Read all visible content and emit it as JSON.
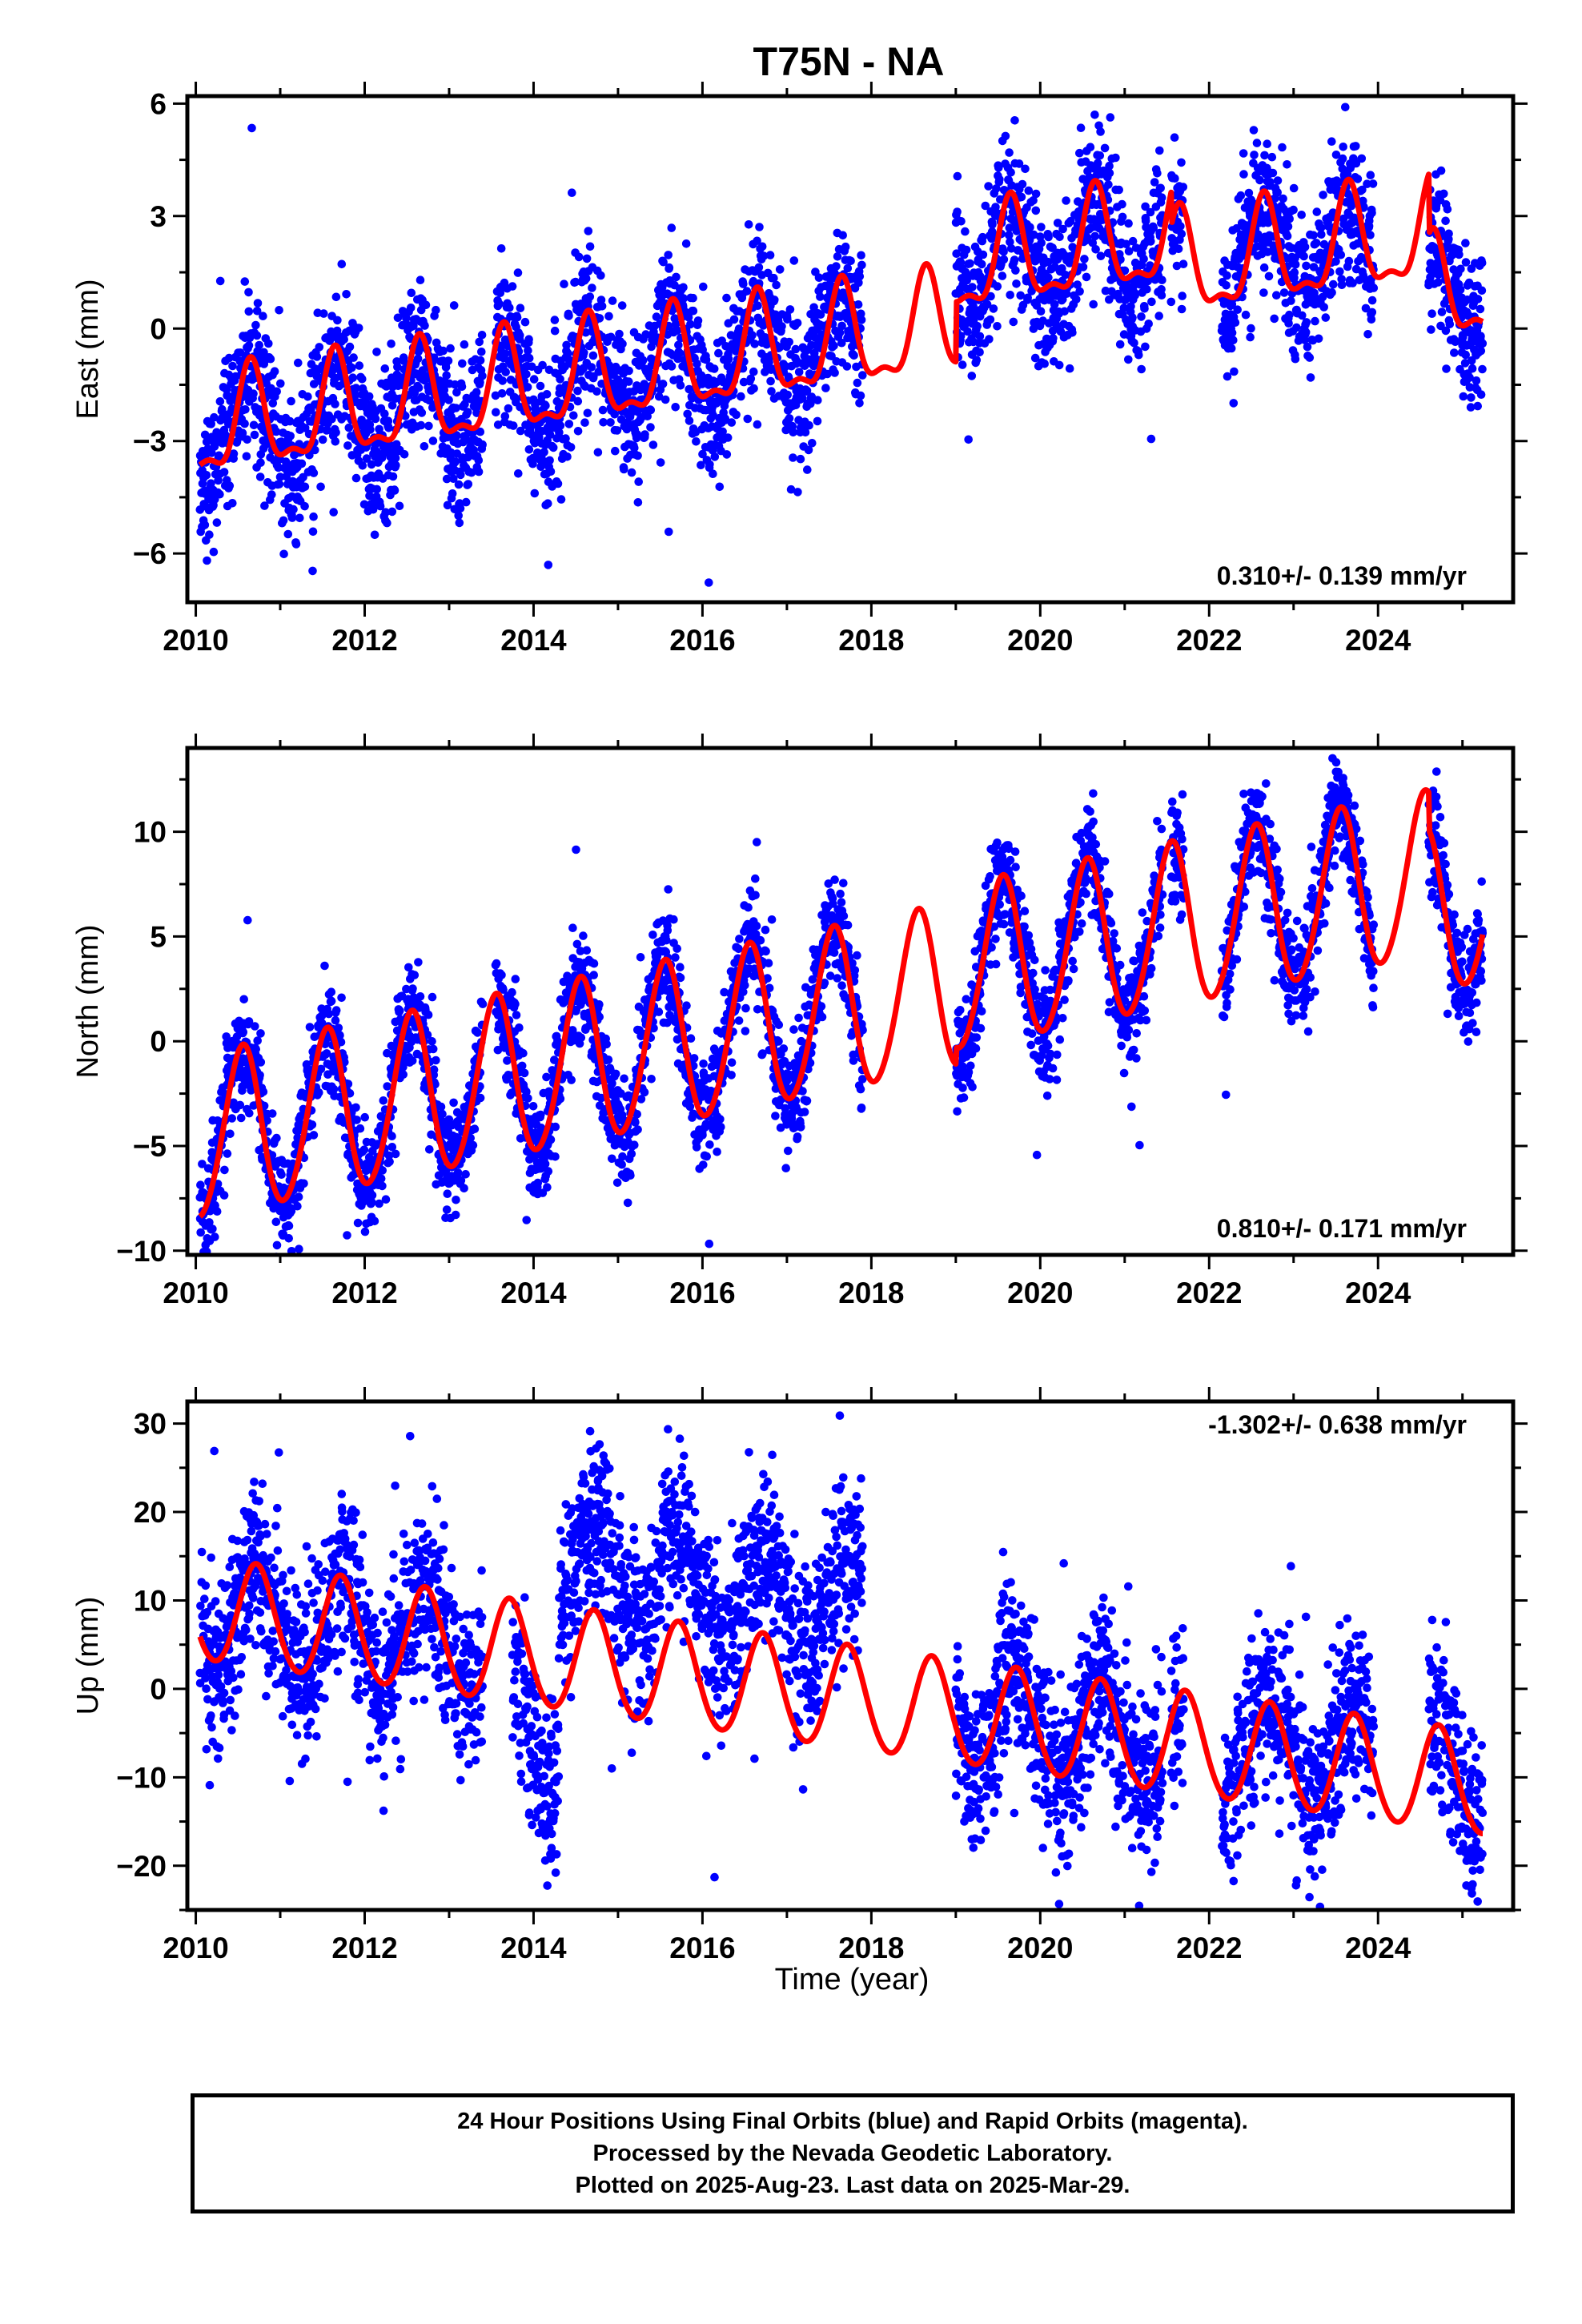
{
  "title": "T75N - NA",
  "xlabel": "Time (year)",
  "colors": {
    "final_orbits": "#0000ff",
    "model_fit": "#ff0000",
    "axes": "#000000"
  },
  "footer": {
    "line1": "24 Hour Positions Using Final Orbits (blue) and Rapid Orbits (magenta).",
    "line2": "Processed by the Nevada Geodetic Laboratory.",
    "line3": "Plotted on 2025-Aug-23. Last data on 2025-Mar-29."
  },
  "chart_data": [
    {
      "type": "scatter",
      "ylabel": "East (mm)",
      "xlim": [
        2009.9,
        2025.6
      ],
      "ylim": [
        -7.3,
        6.2
      ],
      "x_ticks": [
        2010,
        2012,
        2014,
        2016,
        2018,
        2020,
        2022,
        2024
      ],
      "x_tick_labels": [
        "2010",
        "2012",
        "2014",
        "2016",
        "2018",
        "2020",
        "2022",
        "2024"
      ],
      "y_ticks": [
        -6,
        -3,
        0,
        3,
        6
      ],
      "y_tick_labels": [
        "−6",
        "−3",
        "0",
        "3",
        "6"
      ],
      "rate_label": "0.310+/- 0.139 mm/yr",
      "rate_label_position": "bottom-right",
      "grid": false,
      "series": [
        {
          "kind": "points",
          "data_segments": [
            [
              2010.05,
              2013.4
            ],
            [
              2013.55,
              2017.9
            ],
            [
              2019.0,
              2021.45
            ],
            [
              2021.55,
              2021.7
            ],
            [
              2022.15,
              2023.95
            ],
            [
              2024.6,
              2025.24
            ]
          ],
          "trend": {
            "rate": 0.31,
            "ref_year": 2017.6,
            "offset": -0.4
          },
          "annual_amplitude": 1.3,
          "annual_peak_phase": 0.65,
          "offsets": [
            {
              "from": 2019.0,
              "value": 1.6
            },
            {
              "from": 2021.55,
              "value": 0.7
            },
            {
              "from": 2024.6,
              "value": -0.9
            }
          ],
          "scatter_sd": 1.0
        },
        {
          "kind": "model",
          "x_range": [
            2010.05,
            2025.24
          ],
          "trend": {
            "rate": 0.31,
            "ref_year": 2017.6,
            "offset": -0.4
          },
          "annual_amplitude": 1.3,
          "annual_peak_phase": 0.65,
          "semiannual_amplitude": 0.5,
          "semiannual_peak_phase": 0.15,
          "offsets": [
            {
              "from": 2019.0,
              "value": 1.6
            },
            {
              "from": 2021.55,
              "value": 0.7
            },
            {
              "from": 2024.6,
              "value": -0.9
            }
          ]
        }
      ]
    },
    {
      "type": "scatter",
      "ylabel": "North (mm)",
      "xlim": [
        2009.9,
        2025.6
      ],
      "ylim": [
        -10.2,
        14.0
      ],
      "x_ticks": [
        2010,
        2012,
        2014,
        2016,
        2018,
        2020,
        2022,
        2024
      ],
      "x_tick_labels": [
        "2010",
        "2012",
        "2014",
        "2016",
        "2018",
        "2020",
        "2022",
        "2024"
      ],
      "y_ticks": [
        -10,
        -5,
        0,
        5,
        10
      ],
      "y_tick_labels": [
        "−10",
        "−5",
        "0",
        "5",
        "10"
      ],
      "rate_label": "0.810+/- 0.171 mm/yr",
      "rate_label_position": "bottom-right",
      "grid": false,
      "series": [
        {
          "kind": "points",
          "data_segments": [
            [
              2010.05,
              2013.4
            ],
            [
              2013.55,
              2017.9
            ],
            [
              2019.0,
              2021.45
            ],
            [
              2021.55,
              2021.7
            ],
            [
              2022.15,
              2023.95
            ],
            [
              2024.6,
              2025.24
            ]
          ],
          "trend": {
            "rate": 0.81,
            "ref_year": 2017.6,
            "offset": 1.4
          },
          "annual_amplitude": 3.9,
          "annual_peak_phase": 0.55,
          "offsets": [
            {
              "from": 2019.0,
              "value": 0.8
            },
            {
              "from": 2024.6,
              "value": -1.0
            }
          ],
          "scatter_sd": 1.3
        },
        {
          "kind": "model",
          "x_range": [
            2010.05,
            2025.24
          ],
          "trend": {
            "rate": 0.81,
            "ref_year": 2017.6,
            "offset": 1.4
          },
          "annual_amplitude": 3.9,
          "annual_peak_phase": 0.55,
          "semiannual_amplitude": 0.3,
          "semiannual_peak_phase": 0.1,
          "offsets": [
            {
              "from": 2019.0,
              "value": 0.8
            },
            {
              "from": 2024.6,
              "value": -1.0
            }
          ]
        }
      ]
    },
    {
      "type": "scatter",
      "ylabel": "Up (mm)",
      "xlim": [
        2009.9,
        2025.6
      ],
      "ylim": [
        -25,
        32.5
      ],
      "x_ticks": [
        2010,
        2012,
        2014,
        2016,
        2018,
        2020,
        2022,
        2024
      ],
      "x_tick_labels": [
        "2010",
        "2012",
        "2014",
        "2016",
        "2018",
        "2020",
        "2022",
        "2024"
      ],
      "y_ticks": [
        -20,
        -10,
        0,
        10,
        20,
        30
      ],
      "y_tick_labels": [
        "−20",
        "−10",
        "0",
        "10",
        "20",
        "30"
      ],
      "rate_label": "-1.302+/- 0.638 mm/yr",
      "rate_label_position": "top-right",
      "grid": false,
      "series": [
        {
          "kind": "points",
          "data_segments": [
            [
              2010.05,
              2013.4
            ],
            [
              2013.75,
              2014.3
            ],
            [
              2014.3,
              2017.9
            ],
            [
              2019.0,
              2021.45
            ],
            [
              2021.55,
              2021.7
            ],
            [
              2022.15,
              2023.95
            ],
            [
              2024.6,
              2025.24
            ]
          ],
          "trend": {
            "rate": -1.302,
            "ref_year": 2017.6,
            "offset": -1.0
          },
          "annual_amplitude": 5.8,
          "annual_peak_phase": 0.72,
          "offsets": [
            {
              "from": 2013.75,
              "value": -8.0
            },
            {
              "from": 2014.3,
              "value": 10.0
            },
            {
              "from": 2018.2,
              "value": 0.0
            },
            {
              "from": 2022.15,
              "value": 1.0
            }
          ],
          "scatter_sd": 4.8
        },
        {
          "kind": "model",
          "x_range": [
            2010.05,
            2025.24
          ],
          "trend": {
            "rate": -1.302,
            "ref_year": 2017.6,
            "offset": -1.0
          },
          "annual_amplitude": 5.8,
          "annual_peak_phase": 0.72,
          "semiannual_amplitude": 0.4,
          "semiannual_peak_phase": 0.2,
          "offsets": []
        }
      ]
    }
  ]
}
